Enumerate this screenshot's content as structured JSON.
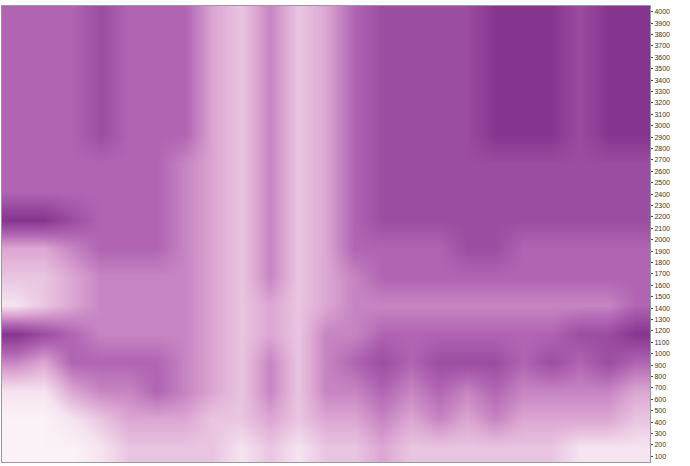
{
  "chart_data": {
    "type": "heatmap",
    "x": [
      1,
      2,
      3,
      4,
      5,
      6,
      7,
      8,
      9,
      10,
      11,
      12,
      13,
      14,
      15,
      16,
      17,
      18,
      19,
      20,
      21,
      22,
      23
    ],
    "y": [
      175,
      425,
      675,
      925,
      1175,
      1425,
      1675,
      1925,
      2175,
      2425,
      2675,
      2925,
      3175,
      3425,
      3675,
      3925
    ],
    "z": [
      [
        1,
        1,
        1,
        2,
        3,
        3,
        3,
        3,
        2,
        3,
        2,
        3,
        3,
        4,
        3,
        3,
        3,
        3,
        3,
        3,
        2,
        2,
        2
      ],
      [
        1,
        1,
        2,
        3,
        4,
        4,
        4,
        3,
        3,
        4,
        3,
        4,
        4,
        5,
        4,
        5,
        4,
        5,
        4,
        4,
        4,
        4,
        3
      ],
      [
        2,
        2,
        4,
        5,
        5,
        6,
        5,
        4,
        3,
        5,
        3,
        5,
        5,
        6,
        5,
        6,
        5,
        6,
        5,
        5,
        5,
        5,
        4
      ],
      [
        5,
        4,
        6,
        6,
        6,
        6,
        5,
        4,
        3,
        5,
        3,
        5,
        6,
        7,
        6,
        7,
        7,
        7,
        6,
        7,
        6,
        7,
        6
      ],
      [
        8,
        7,
        6,
        5,
        5,
        5,
        5,
        4,
        3,
        4,
        3,
        5,
        5,
        6,
        6,
        6,
        6,
        6,
        6,
        6,
        7,
        7,
        8
      ],
      [
        2,
        3,
        4,
        5,
        5,
        5,
        5,
        4,
        3,
        4,
        3,
        4,
        5,
        5,
        5,
        5,
        5,
        5,
        5,
        5,
        5,
        5,
        6
      ],
      [
        3,
        3,
        4,
        5,
        5,
        5,
        5,
        4,
        3,
        5,
        3,
        4,
        5,
        6,
        6,
        6,
        6,
        6,
        6,
        6,
        6,
        6,
        6
      ],
      [
        4,
        4,
        5,
        6,
        6,
        6,
        5,
        4,
        3,
        5,
        3,
        4,
        6,
        6,
        6,
        6,
        7,
        7,
        6,
        6,
        6,
        6,
        6
      ],
      [
        8,
        8,
        7,
        6,
        6,
        6,
        5,
        4,
        3,
        5,
        3,
        4,
        6,
        7,
        7,
        7,
        7,
        7,
        7,
        7,
        7,
        7,
        7
      ],
      [
        6,
        6,
        6,
        6,
        6,
        6,
        5,
        4,
        3,
        5,
        3,
        4,
        6,
        7,
        7,
        7,
        7,
        7,
        7,
        7,
        7,
        7,
        7
      ],
      [
        6,
        6,
        6,
        6,
        6,
        6,
        5,
        4,
        3,
        5,
        3,
        4,
        6,
        7,
        7,
        7,
        7,
        7,
        7,
        7,
        7,
        7,
        7
      ],
      [
        6,
        6,
        6,
        7,
        6,
        6,
        6,
        4,
        3,
        5,
        3,
        4,
        6,
        7,
        7,
        7,
        7,
        8,
        8,
        8,
        7,
        8,
        8
      ],
      [
        6,
        6,
        6,
        7,
        6,
        6,
        6,
        4,
        3,
        5,
        3,
        4,
        6,
        7,
        7,
        7,
        7,
        8,
        8,
        8,
        7,
        8,
        8
      ],
      [
        6,
        6,
        6,
        7,
        6,
        6,
        6,
        4,
        3,
        5,
        3,
        4,
        6,
        7,
        7,
        7,
        7,
        8,
        8,
        8,
        7,
        8,
        8
      ],
      [
        6,
        6,
        6,
        7,
        6,
        6,
        6,
        4,
        3,
        5,
        3,
        4,
        6,
        7,
        7,
        7,
        7,
        8,
        8,
        8,
        7,
        8,
        8
      ],
      [
        6,
        6,
        6,
        7,
        6,
        6,
        6,
        4,
        3,
        5,
        3,
        4,
        6,
        7,
        7,
        7,
        7,
        8,
        8,
        8,
        7,
        8,
        8
      ]
    ],
    "zlim": [
      0,
      10
    ],
    "xlim": [
      0.5,
      23.5
    ],
    "ylim": [
      50,
      4050
    ],
    "yticks": [
      100,
      200,
      300,
      400,
      500,
      600,
      700,
      800,
      900,
      1000,
      1100,
      1200,
      1300,
      1400,
      1500,
      1600,
      1700,
      1800,
      1900,
      2000,
      2100,
      2200,
      2300,
      2400,
      2500,
      2600,
      2700,
      2800,
      2900,
      3000,
      3100,
      3200,
      3300,
      3400,
      3500,
      3600,
      3700,
      3800,
      3900,
      4000
    ],
    "tick_labels": "y",
    "grid": false
  }
}
